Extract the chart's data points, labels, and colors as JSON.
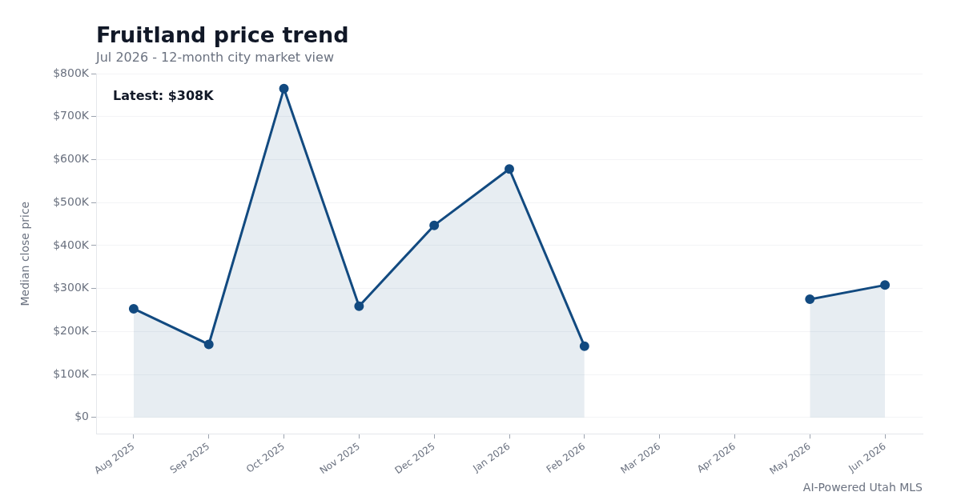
{
  "chart_data": {
    "type": "area",
    "title": "Fruitland price trend",
    "subtitle": "Jul 2026 - 12-month city market view",
    "ylabel": "Median close price",
    "categories": [
      "Aug 2025",
      "Sep 2025",
      "Oct 2025",
      "Nov 2025",
      "Dec 2025",
      "Jan 2026",
      "Feb 2026",
      "Mar 2026",
      "Apr 2026",
      "May 2026",
      "Jun 2026"
    ],
    "series": [
      {
        "color": "#124a80",
        "values": [
          253000,
          170000,
          765000,
          259000,
          447000,
          578000,
          166000,
          null,
          null,
          275000,
          308000
        ]
      }
    ],
    "ylim": [
      -38000,
      800000
    ],
    "yticks": [
      {
        "value": 0,
        "label": "$0"
      },
      {
        "value": 100000,
        "label": "$100K"
      },
      {
        "value": 200000,
        "label": "$200K"
      },
      {
        "value": 300000,
        "label": "$300K"
      },
      {
        "value": 400000,
        "label": "$400K"
      },
      {
        "value": 500000,
        "label": "$500K"
      },
      {
        "value": 600000,
        "label": "$600K"
      },
      {
        "value": 700000,
        "label": "$700K"
      },
      {
        "value": 800000,
        "label": "$800K"
      }
    ],
    "grid": "y",
    "marker": "circle",
    "line_style": "solid",
    "legend": false,
    "annotations": [
      "Latest: $308K",
      "AI-Powered Utah MLS"
    ]
  }
}
